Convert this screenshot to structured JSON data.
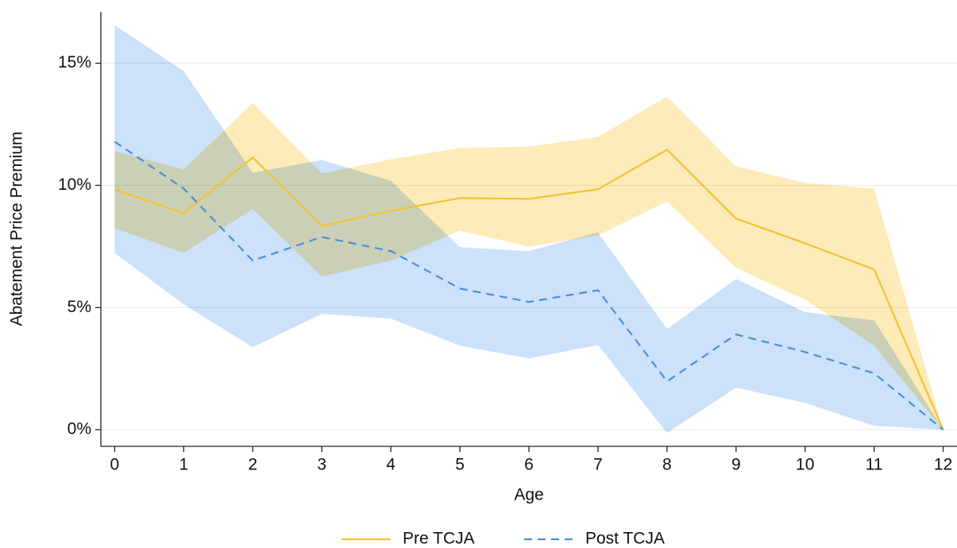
{
  "chart_data": {
    "type": "line",
    "x_label": "Age",
    "y_label": "Abatement Price Premium",
    "x": [
      0,
      1,
      2,
      3,
      4,
      5,
      6,
      7,
      8,
      9,
      10,
      11,
      12
    ],
    "xlim": [
      -0.2,
      12.2
    ],
    "xticks": [
      0,
      1,
      2,
      3,
      4,
      5,
      6,
      7,
      8,
      9,
      10,
      11,
      12
    ],
    "ylim": [
      -0.68,
      17.1
    ],
    "yticks": [
      {
        "value": 0,
        "label": "0%"
      },
      {
        "value": 5,
        "label": "5%"
      },
      {
        "value": 10,
        "label": "10%"
      },
      {
        "value": 15,
        "label": "15%"
      }
    ],
    "grid": true,
    "legend": "bottom",
    "series": [
      {
        "name": "Pre TCJA",
        "color": "#f2c232",
        "band_color": "#fbe08a",
        "line_style": "solid",
        "values": [
          9.84,
          8.86,
          11.14,
          8.34,
          8.96,
          9.48,
          9.45,
          9.84,
          11.46,
          8.64,
          7.63,
          6.56,
          0
        ],
        "upper": [
          11.4,
          10.65,
          13.38,
          10.49,
          11.07,
          11.53,
          11.59,
          11.98,
          13.64,
          10.78,
          10.1,
          9.87,
          0
        ],
        "lower": [
          8.25,
          7.24,
          9.03,
          6.27,
          6.92,
          8.15,
          7.5,
          7.95,
          9.35,
          6.62,
          5.32,
          3.44,
          0
        ]
      },
      {
        "name": "Post TCJA",
        "color": "#4a90d9",
        "band_color": "#a9cdf7",
        "line_style": "dashed",
        "values": [
          11.79,
          9.87,
          6.92,
          7.89,
          7.31,
          5.78,
          5.23,
          5.71,
          1.98,
          3.9,
          3.18,
          2.31,
          0
        ],
        "upper": [
          16.56,
          14.68,
          10.52,
          11.04,
          10.19,
          7.47,
          7.31,
          8.08,
          4.12,
          6.17,
          4.81,
          4.48,
          0
        ],
        "lower": [
          7.24,
          5.13,
          3.38,
          4.74,
          4.55,
          3.44,
          2.92,
          3.47,
          -0.13,
          1.72,
          1.1,
          0.16,
          0
        ]
      }
    ]
  }
}
